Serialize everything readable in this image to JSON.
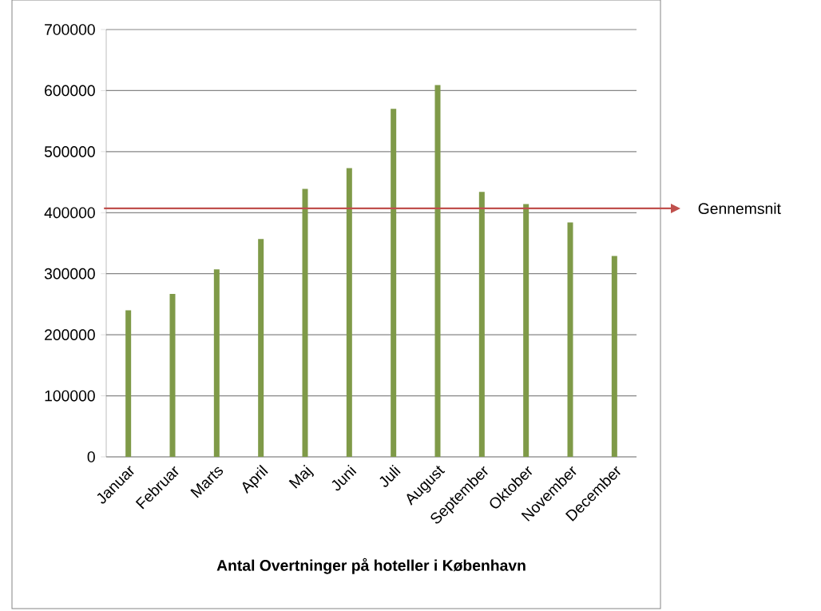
{
  "chart_data": {
    "type": "bar",
    "title": "Antal Overtninger på hoteller i København",
    "categories": [
      "Januar",
      "Februar",
      "Marts",
      "April",
      "Maj",
      "Juni",
      "Juli",
      "August",
      "September",
      "Oktober",
      "November",
      "December"
    ],
    "values": [
      240000,
      267000,
      307000,
      357000,
      439000,
      473000,
      570000,
      609000,
      434000,
      414000,
      384000,
      329000
    ],
    "color": "#7f9a48",
    "ylim": [
      0,
      700000
    ],
    "yticks": [
      0,
      100000,
      200000,
      300000,
      400000,
      500000,
      600000,
      700000
    ],
    "grid": "y",
    "ref_lines": [
      {
        "axis": "y",
        "value": 407000,
        "label": "Gennemsnit",
        "color": "#c0504d"
      }
    ]
  }
}
